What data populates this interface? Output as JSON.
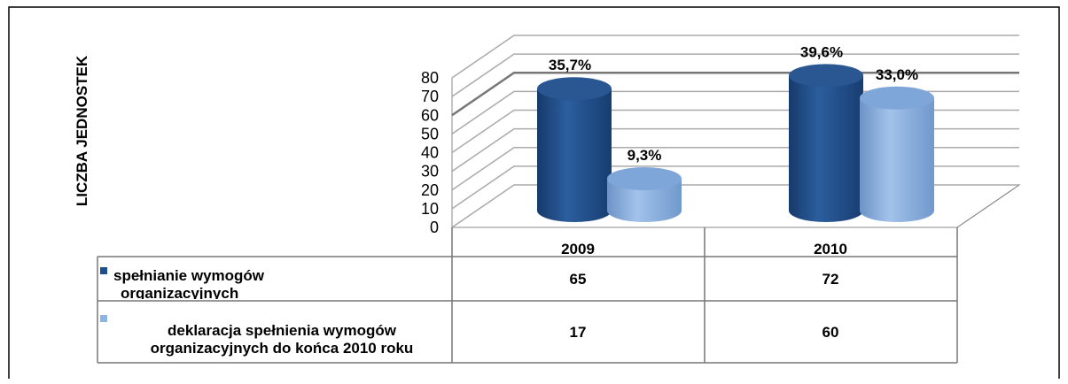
{
  "chart_data": {
    "type": "bar3d",
    "y_label": "LICZBA JEDNOSTEK",
    "categories": [
      "2009",
      "2010"
    ],
    "series": [
      {
        "name": "spełnianie wymogów organizacyjnych",
        "color": "#1f4e8c",
        "values": [
          65,
          72
        ],
        "data_labels": [
          "35,7%",
          "39,6%"
        ]
      },
      {
        "name": "deklaracja spełnienia wymogów organizacyjnych do końca 2010 roku",
        "color": "#8eb4e3",
        "values": [
          17,
          60
        ],
        "data_labels": [
          "9,3%",
          "33,0%"
        ]
      }
    ],
    "ylim": [
      0,
      80
    ],
    "yticks": [
      0,
      10,
      20,
      30,
      40,
      50,
      60,
      70,
      80
    ],
    "grid": true
  }
}
